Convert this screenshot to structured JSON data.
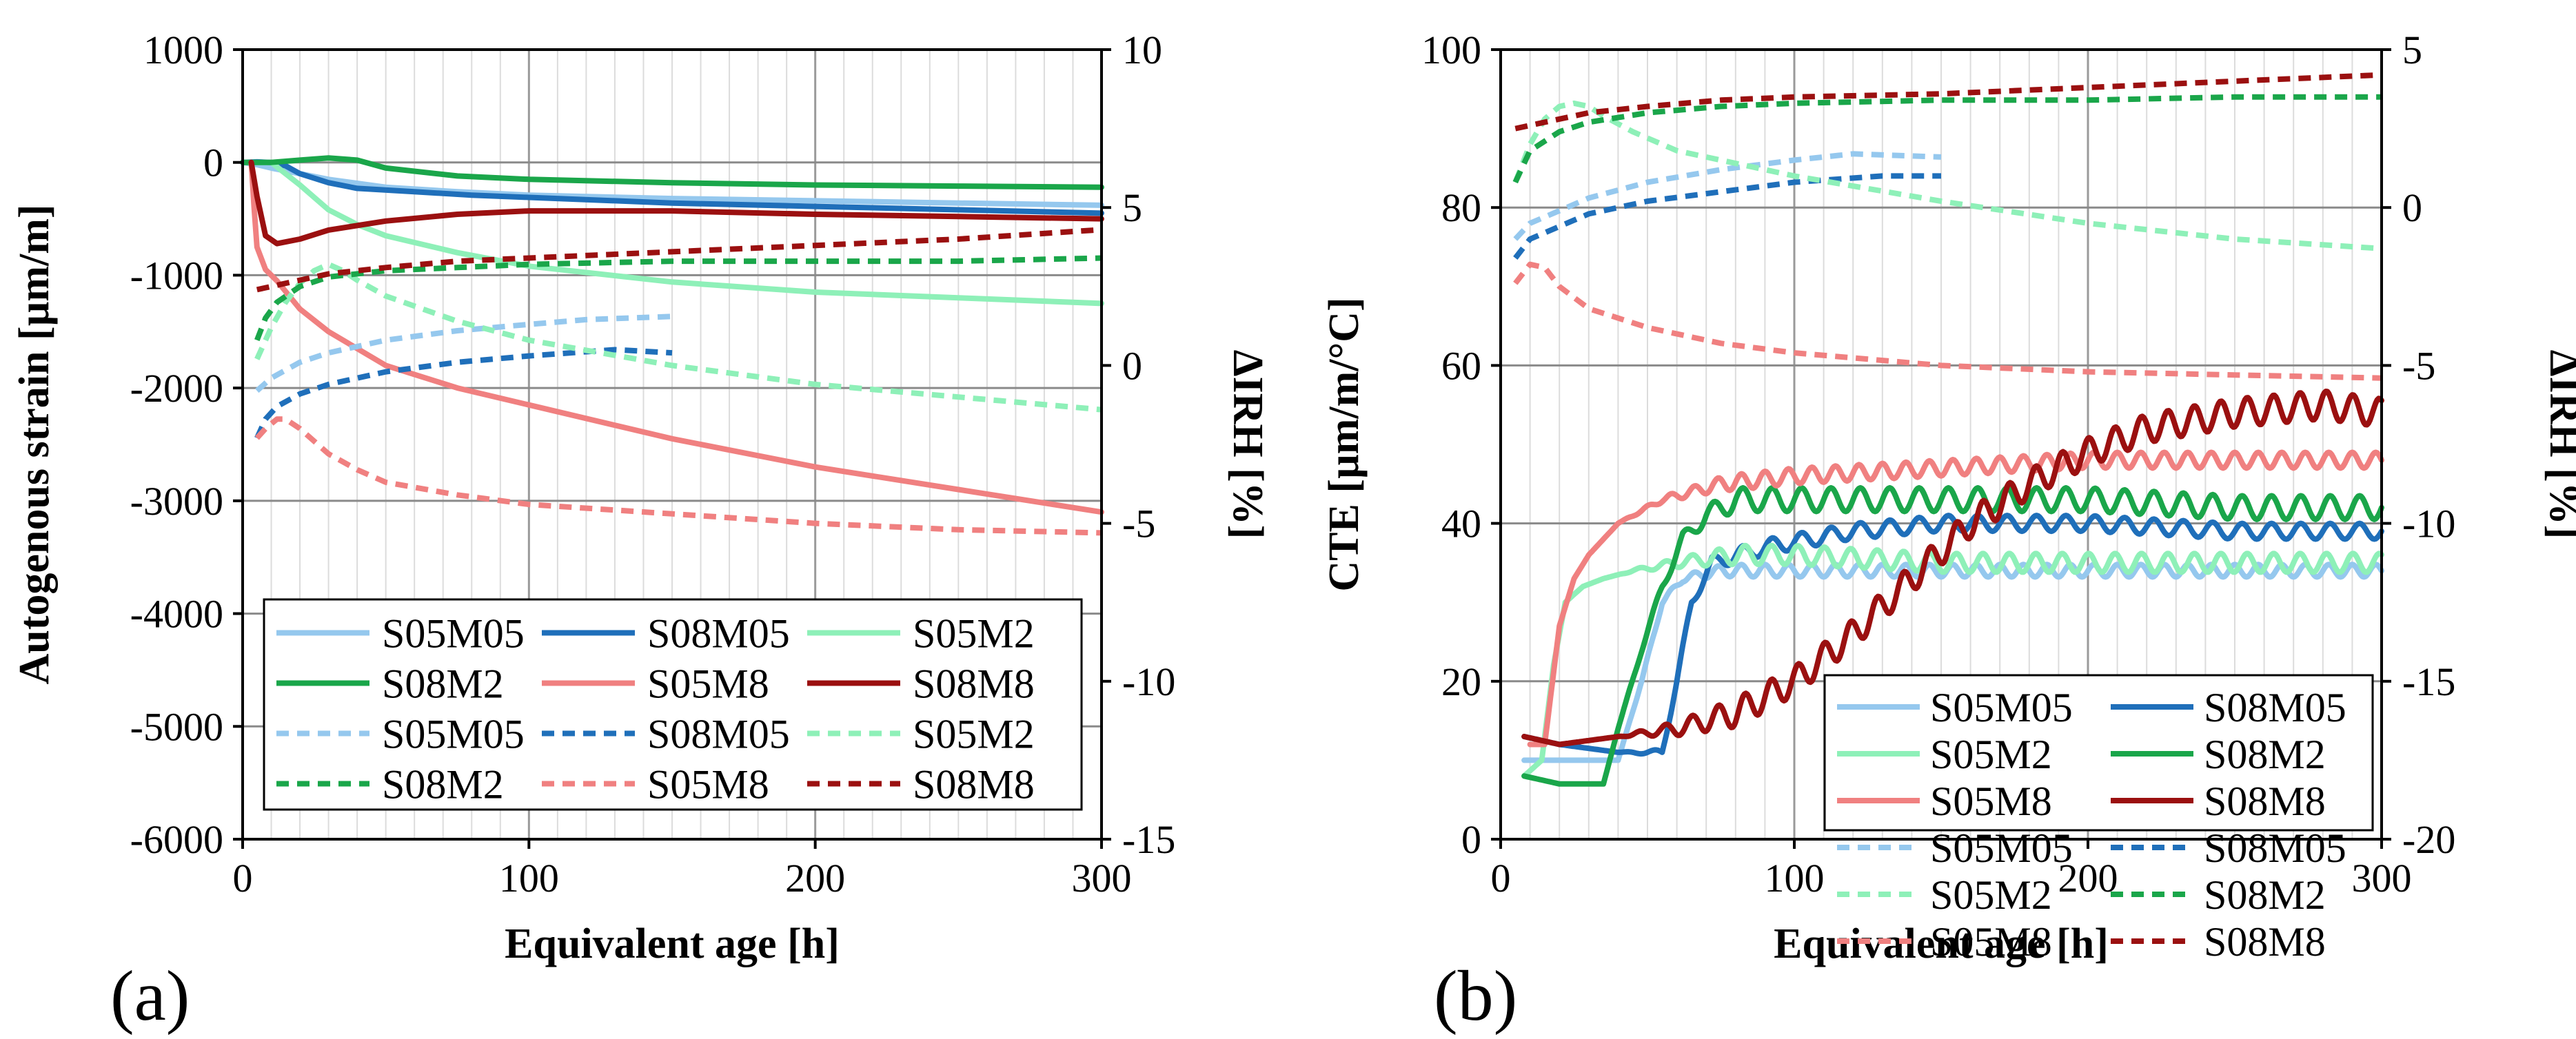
{
  "figure": {
    "panels": [
      {
        "label": "(a)"
      },
      {
        "label": "(b)"
      }
    ]
  },
  "chart_data": [
    {
      "type": "line",
      "panel_label": "(a)",
      "xlabel": "Equivalent age [h]",
      "ylabel": "Autogenous strain [µm/m]",
      "y2label": "ΔIRH [%]",
      "xlim": [
        0,
        300
      ],
      "ylim": [
        -6000,
        1000
      ],
      "y2lim": [
        -15,
        10
      ],
      "xticks": [
        0,
        100,
        200,
        300
      ],
      "yticks": [
        -6000,
        -5000,
        -4000,
        -3000,
        -2000,
        -1000,
        0,
        1000
      ],
      "y2ticks": [
        -15,
        -10,
        -5,
        0,
        5,
        10
      ],
      "xtick_labels": [
        "0",
        "100",
        "200",
        "300"
      ],
      "ytick_labels": [
        "-6000",
        "-5000",
        "-4000",
        "-3000",
        "-2000",
        "-1000",
        "0",
        "1000"
      ],
      "y2tick_labels": [
        "-15",
        "-10",
        "-5",
        "0",
        "5",
        "10"
      ],
      "grid": true,
      "legend_position": "bottom",
      "legend_columns": 3,
      "series": [
        {
          "name": "S05M05",
          "axis": "y",
          "style": "solid",
          "color": "#95c8ee",
          "x": [
            0,
            5,
            10,
            20,
            30,
            50,
            75,
            100,
            150,
            200,
            250,
            300
          ],
          "y": [
            0,
            -20,
            -50,
            -100,
            -150,
            -220,
            -260,
            -290,
            -320,
            -340,
            -360,
            -380
          ]
        },
        {
          "name": "S08M05",
          "axis": "y",
          "style": "solid",
          "color": "#1f6fba",
          "x": [
            0,
            5,
            10,
            15,
            20,
            30,
            40,
            60,
            80,
            100,
            150,
            200,
            250,
            300
          ],
          "y": [
            0,
            5,
            0,
            -30,
            -100,
            -180,
            -230,
            -260,
            -290,
            -310,
            -360,
            -390,
            -420,
            -450
          ]
        },
        {
          "name": "S05M2",
          "axis": "y",
          "style": "solid",
          "color": "#8ef0b8",
          "x": [
            0,
            10,
            20,
            30,
            40,
            50,
            75,
            100,
            150,
            200,
            250,
            300
          ],
          "y": [
            0,
            0,
            -200,
            -420,
            -550,
            -650,
            -800,
            -920,
            -1060,
            -1150,
            -1200,
            -1250
          ]
        },
        {
          "name": "S08M2",
          "axis": "y",
          "style": "solid",
          "color": "#1aa64a",
          "x": [
            0,
            10,
            20,
            30,
            40,
            50,
            75,
            100,
            150,
            200,
            250,
            300
          ],
          "y": [
            0,
            0,
            20,
            40,
            20,
            -50,
            -120,
            -150,
            -180,
            -200,
            -210,
            -220
          ]
        },
        {
          "name": "S05M8",
          "axis": "y",
          "style": "solid",
          "color": "#f08080",
          "x": [
            3,
            4,
            5,
            8,
            12,
            20,
            30,
            50,
            75,
            100,
            150,
            200,
            250,
            300
          ],
          "y": [
            0,
            -400,
            -750,
            -950,
            -1050,
            -1300,
            -1500,
            -1800,
            -2000,
            -2150,
            -2450,
            -2700,
            -2900,
            -3100
          ]
        },
        {
          "name": "S08M8",
          "axis": "y",
          "style": "solid",
          "color": "#9b1010",
          "x": [
            3,
            5,
            8,
            12,
            20,
            30,
            50,
            75,
            100,
            150,
            200,
            250,
            300
          ],
          "y": [
            0,
            -300,
            -650,
            -720,
            -680,
            -600,
            -520,
            -460,
            -430,
            -430,
            -460,
            -480,
            -500
          ]
        },
        {
          "name": "S05M05",
          "axis": "y2",
          "style": "dashed",
          "color": "#95c8ee",
          "x": [
            5,
            10,
            20,
            30,
            50,
            75,
            100,
            120,
            150
          ],
          "y": [
            -0.8,
            -0.4,
            0.1,
            0.4,
            0.8,
            1.1,
            1.3,
            1.45,
            1.55
          ]
        },
        {
          "name": "S08M05",
          "axis": "y2",
          "style": "dashed",
          "color": "#1f6fba",
          "x": [
            5,
            8,
            12,
            20,
            30,
            50,
            75,
            100,
            130,
            150
          ],
          "y": [
            -2.3,
            -1.7,
            -1.3,
            -0.9,
            -0.6,
            -0.2,
            0.1,
            0.3,
            0.5,
            0.4
          ]
        },
        {
          "name": "S05M2",
          "axis": "y2",
          "style": "dashed",
          "color": "#8ef0b8",
          "x": [
            5,
            10,
            15,
            20,
            25,
            30,
            35,
            40,
            50,
            75,
            100,
            150,
            200,
            250,
            300
          ],
          "y": [
            0.2,
            1.2,
            2.0,
            2.6,
            3.0,
            3.2,
            3.0,
            2.7,
            2.2,
            1.4,
            0.8,
            0.0,
            -0.6,
            -1.0,
            -1.4
          ]
        },
        {
          "name": "S08M2",
          "axis": "y2",
          "style": "dashed",
          "color": "#1aa64a",
          "x": [
            5,
            8,
            12,
            20,
            30,
            50,
            75,
            100,
            150,
            200,
            250,
            300
          ],
          "y": [
            0.8,
            1.5,
            2.0,
            2.5,
            2.8,
            3.0,
            3.1,
            3.2,
            3.3,
            3.3,
            3.3,
            3.4
          ]
        },
        {
          "name": "S05M8",
          "axis": "y2",
          "style": "dashed",
          "color": "#f08080",
          "x": [
            5,
            8,
            12,
            15,
            20,
            25,
            30,
            40,
            50,
            75,
            100,
            150,
            200,
            250,
            300
          ],
          "y": [
            -2.3,
            -2.0,
            -1.7,
            -1.7,
            -2.0,
            -2.4,
            -2.8,
            -3.3,
            -3.7,
            -4.1,
            -4.4,
            -4.7,
            -5.0,
            -5.2,
            -5.3
          ]
        },
        {
          "name": "S08M8",
          "axis": "y2",
          "style": "dashed",
          "color": "#9b1010",
          "x": [
            5,
            10,
            20,
            30,
            50,
            75,
            100,
            150,
            200,
            250,
            300
          ],
          "y": [
            2.4,
            2.5,
            2.7,
            2.9,
            3.1,
            3.3,
            3.4,
            3.6,
            3.8,
            4.0,
            4.3
          ]
        }
      ]
    },
    {
      "type": "line",
      "panel_label": "(b)",
      "xlabel": "Equivalent age [h]",
      "ylabel": "CTE [µm/m/°C]",
      "y2label": "ΔIRH [%]",
      "xlim": [
        0,
        300
      ],
      "ylim": [
        0,
        100
      ],
      "y2lim": [
        -20,
        5
      ],
      "xticks": [
        0,
        100,
        200,
        300
      ],
      "yticks": [
        0,
        20,
        40,
        60,
        80,
        100
      ],
      "y2ticks": [
        -20,
        -15,
        -10,
        -5,
        0,
        5
      ],
      "xtick_labels": [
        "0",
        "100",
        "200",
        "300"
      ],
      "ytick_labels": [
        "0",
        "20",
        "40",
        "60",
        "80",
        "100"
      ],
      "y2tick_labels": [
        "-20",
        "-15",
        "-10",
        "-5",
        "0",
        "5"
      ],
      "grid": true,
      "legend_position": "bottom-right",
      "legend_columns": 2,
      "series": [
        {
          "name": "S05M05",
          "axis": "y",
          "style": "solid",
          "color": "#95c8ee",
          "wave_amp": 0.8,
          "wave_period": 8,
          "x": [
            8,
            20,
            40,
            48,
            55,
            62,
            75,
            100,
            150,
            200,
            250,
            300
          ],
          "y": [
            10,
            10,
            10,
            20,
            30,
            33,
            34,
            34,
            34,
            34,
            34,
            34
          ]
        },
        {
          "name": "S08M05",
          "axis": "y",
          "style": "solid",
          "color": "#1f6fba",
          "wave_amp": 1.0,
          "wave_period": 10,
          "x": [
            8,
            20,
            40,
            55,
            60,
            65,
            72,
            90,
            120,
            150,
            200,
            250,
            300
          ],
          "y": [
            13,
            12,
            11,
            11,
            20,
            30,
            35,
            37,
            39,
            40,
            40,
            39,
            39
          ]
        },
        {
          "name": "S05M2",
          "axis": "y",
          "style": "solid",
          "color": "#8ef0b8",
          "wave_amp": 1.2,
          "wave_period": 9,
          "x": [
            8,
            14,
            18,
            22,
            28,
            35,
            45,
            60,
            80,
            100,
            150,
            200,
            250,
            300
          ],
          "y": [
            8,
            10,
            22,
            30,
            32,
            33,
            34,
            35,
            36,
            36,
            35,
            35,
            35,
            35
          ]
        },
        {
          "name": "S08M2",
          "axis": "y",
          "style": "solid",
          "color": "#1aa64a",
          "wave_amp": 1.5,
          "wave_period": 10,
          "x": [
            8,
            20,
            35,
            40,
            48,
            55,
            62,
            70,
            80,
            100,
            150,
            200,
            250,
            300
          ],
          "y": [
            8,
            7,
            7,
            14,
            24,
            32,
            38,
            41,
            43,
            43,
            43,
            43,
            42,
            42
          ]
        },
        {
          "name": "S05M8",
          "axis": "y",
          "style": "solid",
          "color": "#f08080",
          "wave_amp": 1.0,
          "wave_period": 8,
          "x": [
            10,
            15,
            20,
            25,
            30,
            40,
            55,
            75,
            100,
            150,
            200,
            250,
            300
          ],
          "y": [
            12,
            12,
            27,
            33,
            36,
            40,
            43,
            45,
            46,
            47,
            48,
            48,
            48
          ]
        },
        {
          "name": "S08M8",
          "axis": "y",
          "style": "solid",
          "color": "#9b1010",
          "wave_amp": 1.8,
          "wave_period": 9,
          "x": [
            8,
            20,
            40,
            60,
            80,
            100,
            120,
            140,
            160,
            180,
            200,
            220,
            250,
            280,
            300
          ],
          "y": [
            13,
            12,
            13,
            14,
            16,
            20,
            26,
            33,
            40,
            45,
            49,
            52,
            54,
            55,
            54
          ]
        },
        {
          "name": "S05M05",
          "axis": "y2",
          "style": "dashed",
          "color": "#95c8ee",
          "x": [
            5,
            10,
            20,
            30,
            50,
            75,
            100,
            120,
            150
          ],
          "y": [
            -1.0,
            -0.5,
            -0.1,
            0.3,
            0.8,
            1.2,
            1.5,
            1.7,
            1.6
          ]
        },
        {
          "name": "S08M05",
          "axis": "y2",
          "style": "dashed",
          "color": "#1f6fba",
          "x": [
            5,
            10,
            20,
            30,
            50,
            75,
            100,
            130,
            150
          ],
          "y": [
            -1.6,
            -1.0,
            -0.6,
            -0.2,
            0.2,
            0.5,
            0.8,
            1.0,
            1.0
          ]
        },
        {
          "name": "S05M2",
          "axis": "y2",
          "style": "dashed",
          "color": "#8ef0b8",
          "x": [
            5,
            10,
            15,
            20,
            25,
            30,
            35,
            45,
            60,
            100,
            150,
            200,
            250,
            300
          ],
          "y": [
            0.8,
            2.0,
            2.8,
            3.2,
            3.3,
            3.2,
            2.9,
            2.4,
            1.8,
            1.0,
            0.2,
            -0.5,
            -1.0,
            -1.3
          ]
        },
        {
          "name": "S08M2",
          "axis": "y2",
          "style": "dashed",
          "color": "#1aa64a",
          "x": [
            5,
            10,
            20,
            30,
            50,
            75,
            100,
            150,
            200,
            250,
            300
          ],
          "y": [
            0.8,
            1.8,
            2.4,
            2.7,
            3.0,
            3.2,
            3.3,
            3.4,
            3.4,
            3.5,
            3.5
          ]
        },
        {
          "name": "S05M8",
          "axis": "y2",
          "style": "dashed",
          "color": "#f08080",
          "x": [
            5,
            10,
            15,
            20,
            30,
            50,
            75,
            100,
            150,
            200,
            250,
            300
          ],
          "y": [
            -2.4,
            -1.8,
            -1.9,
            -2.5,
            -3.2,
            -3.8,
            -4.3,
            -4.6,
            -5.0,
            -5.2,
            -5.3,
            -5.4
          ]
        },
        {
          "name": "S08M8",
          "axis": "y2",
          "style": "dashed",
          "color": "#9b1010",
          "x": [
            5,
            10,
            20,
            30,
            50,
            75,
            100,
            150,
            200,
            250,
            300
          ],
          "y": [
            2.5,
            2.6,
            2.8,
            3.0,
            3.2,
            3.4,
            3.5,
            3.6,
            3.8,
            4.0,
            4.2
          ]
        }
      ]
    }
  ]
}
